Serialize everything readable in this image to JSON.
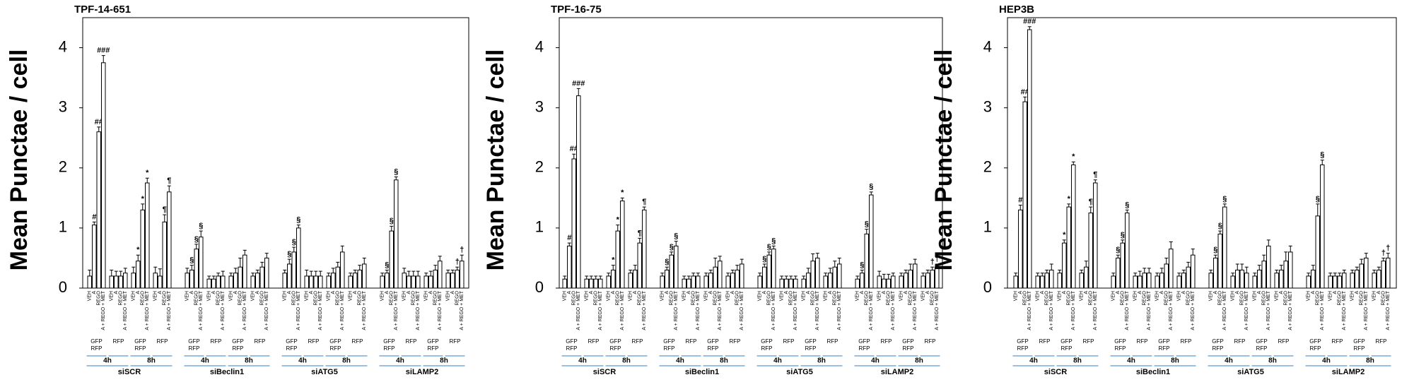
{
  "chart_data": [
    {
      "type": "bar",
      "title": "TPF-14-651",
      "ylabel": "Mean Punctae / cell",
      "ylim": [
        0,
        4.5
      ],
      "yticks": [
        0,
        1,
        2,
        3,
        4
      ],
      "bar_labels": [
        "VEH",
        "A",
        "REGO",
        "A + REGO + MET"
      ],
      "reporters": [
        [
          "GFP",
          "RFP"
        ],
        [
          "RFP"
        ]
      ],
      "times": [
        "4h",
        "8h"
      ],
      "groups": [
        "siSCR",
        "siBeclin1",
        "siATG5",
        "siLAMP2"
      ],
      "values": [
        0.2,
        1.05,
        2.6,
        3.75,
        0.2,
        0.2,
        0.2,
        0.25,
        0.25,
        0.45,
        1.3,
        1.75,
        0.25,
        0.2,
        1.1,
        1.6,
        0.25,
        0.3,
        0.65,
        0.85,
        0.15,
        0.15,
        0.2,
        0.2,
        0.2,
        0.25,
        0.35,
        0.55,
        0.2,
        0.25,
        0.35,
        0.5,
        0.25,
        0.4,
        0.6,
        1.0,
        0.2,
        0.2,
        0.2,
        0.2,
        0.2,
        0.25,
        0.35,
        0.6,
        0.2,
        0.25,
        0.3,
        0.4,
        0.2,
        0.25,
        0.95,
        1.8,
        0.25,
        0.2,
        0.2,
        0.2,
        0.2,
        0.2,
        0.3,
        0.45,
        0.25,
        0.25,
        0.3,
        0.45
      ],
      "errors": [
        0.1,
        0.05,
        0.08,
        0.12,
        0.1,
        0.08,
        0.08,
        0.08,
        0.1,
        0.1,
        0.1,
        0.08,
        0.1,
        0.12,
        0.12,
        0.1,
        0.08,
        0.08,
        0.08,
        0.1,
        0.05,
        0.05,
        0.05,
        0.08,
        0.05,
        0.08,
        0.15,
        0.08,
        0.05,
        0.05,
        0.08,
        0.08,
        0.05,
        0.08,
        0.08,
        0.05,
        0.1,
        0.08,
        0.08,
        0.08,
        0.05,
        0.08,
        0.08,
        0.1,
        0.05,
        0.05,
        0.08,
        0.1,
        0.05,
        0.05,
        0.08,
        0.05,
        0.08,
        0.08,
        0.08,
        0.08,
        0.05,
        0.08,
        0.08,
        0.08,
        0.05,
        0.05,
        0.05,
        0.1
      ],
      "symbols": [
        null,
        "#",
        "##",
        "###",
        null,
        null,
        null,
        null,
        null,
        "*",
        "*",
        "*",
        null,
        null,
        "¶",
        "¶",
        null,
        "§",
        "§",
        "§",
        null,
        null,
        null,
        null,
        null,
        null,
        null,
        null,
        null,
        null,
        null,
        null,
        null,
        "§",
        "§",
        "§",
        null,
        null,
        null,
        null,
        null,
        null,
        null,
        null,
        null,
        null,
        null,
        null,
        null,
        "§",
        "§",
        "§",
        null,
        null,
        null,
        null,
        null,
        null,
        null,
        null,
        null,
        null,
        "†",
        "†"
      ]
    },
    {
      "type": "bar",
      "title": "TPF-16-75",
      "ylabel": "Mean Punctae / cell",
      "ylim": [
        0,
        4.5
      ],
      "yticks": [
        0,
        1,
        2,
        3,
        4
      ],
      "bar_labels": [
        "VEH",
        "A",
        "REGO",
        "A + REGO + MET"
      ],
      "reporters": [
        [
          "GFP",
          "RFP"
        ],
        [
          "RFP"
        ]
      ],
      "times": [
        "4h",
        "8h"
      ],
      "groups": [
        "siSCR",
        "siBeclin1",
        "siATG5",
        "siLAMP2"
      ],
      "values": [
        0.15,
        0.7,
        2.15,
        3.2,
        0.15,
        0.15,
        0.15,
        0.15,
        0.2,
        0.3,
        0.95,
        1.45,
        0.25,
        0.3,
        0.75,
        1.3,
        0.2,
        0.3,
        0.55,
        0.7,
        0.15,
        0.15,
        0.2,
        0.2,
        0.2,
        0.25,
        0.35,
        0.45,
        0.2,
        0.25,
        0.3,
        0.4,
        0.2,
        0.35,
        0.55,
        0.65,
        0.15,
        0.15,
        0.15,
        0.15,
        0.15,
        0.25,
        0.45,
        0.5,
        0.2,
        0.25,
        0.35,
        0.4,
        0.15,
        0.25,
        0.9,
        1.55,
        0.2,
        0.15,
        0.15,
        0.2,
        0.2,
        0.25,
        0.3,
        0.4,
        0.2,
        0.25,
        0.3,
        0.35
      ],
      "errors": [
        0.05,
        0.05,
        0.08,
        0.12,
        0.05,
        0.05,
        0.05,
        0.05,
        0.05,
        0.08,
        0.1,
        0.05,
        0.05,
        0.08,
        0.08,
        0.05,
        0.05,
        0.05,
        0.05,
        0.08,
        0.05,
        0.05,
        0.05,
        0.05,
        0.05,
        0.05,
        0.15,
        0.08,
        0.05,
        0.05,
        0.08,
        0.08,
        0.05,
        0.05,
        0.05,
        0.05,
        0.05,
        0.05,
        0.05,
        0.05,
        0.05,
        0.08,
        0.12,
        0.08,
        0.05,
        0.08,
        0.1,
        0.1,
        0.05,
        0.05,
        0.08,
        0.05,
        0.08,
        0.08,
        0.08,
        0.05,
        0.05,
        0.05,
        0.1,
        0.08,
        0.05,
        0.05,
        0.05,
        0.05
      ],
      "symbols": [
        null,
        "#",
        "##",
        "###",
        null,
        null,
        null,
        null,
        null,
        "*",
        "*",
        "*",
        null,
        null,
        "¶",
        "¶",
        null,
        "§",
        "§",
        "§",
        null,
        null,
        null,
        null,
        null,
        null,
        null,
        null,
        null,
        null,
        null,
        null,
        null,
        "§",
        "§",
        "§",
        null,
        null,
        null,
        null,
        null,
        null,
        null,
        null,
        null,
        null,
        null,
        null,
        null,
        "§",
        "§",
        "§",
        null,
        null,
        null,
        null,
        null,
        null,
        null,
        null,
        null,
        null,
        "†",
        "†"
      ]
    },
    {
      "type": "bar",
      "title": "HEP3B",
      "ylabel": "Mean Punctae / cell",
      "ylim": [
        0,
        4.5
      ],
      "yticks": [
        0,
        1,
        2,
        3,
        4
      ],
      "bar_labels": [
        "VEH",
        "A",
        "REGO",
        "A + REGO + MET"
      ],
      "reporters": [
        [
          "GFP",
          "RFP"
        ],
        [
          "RFP"
        ]
      ],
      "times": [
        "4h",
        "8h"
      ],
      "groups": [
        "siSCR",
        "siBeclin1",
        "siATG5",
        "siLAMP2"
      ],
      "values": [
        0.2,
        1.3,
        3.1,
        4.3,
        0.2,
        0.2,
        0.25,
        0.3,
        0.25,
        0.75,
        1.35,
        2.05,
        0.25,
        0.35,
        1.25,
        1.75,
        0.2,
        0.5,
        0.75,
        1.25,
        0.2,
        0.2,
        0.25,
        0.25,
        0.2,
        0.25,
        0.4,
        0.65,
        0.2,
        0.25,
        0.35,
        0.55,
        0.25,
        0.5,
        0.9,
        1.35,
        0.2,
        0.3,
        0.3,
        0.25,
        0.2,
        0.3,
        0.45,
        0.7,
        0.25,
        0.3,
        0.45,
        0.6,
        0.2,
        0.3,
        1.2,
        2.05,
        0.2,
        0.2,
        0.2,
        0.25,
        0.25,
        0.3,
        0.4,
        0.5,
        0.25,
        0.3,
        0.45,
        0.5
      ],
      "errors": [
        0.05,
        0.08,
        0.08,
        0.05,
        0.05,
        0.05,
        0.05,
        0.1,
        0.05,
        0.05,
        0.05,
        0.05,
        0.05,
        0.1,
        0.1,
        0.05,
        0.05,
        0.05,
        0.05,
        0.05,
        0.05,
        0.08,
        0.08,
        0.08,
        0.05,
        0.08,
        0.1,
        0.12,
        0.05,
        0.05,
        0.08,
        0.1,
        0.05,
        0.05,
        0.05,
        0.05,
        0.05,
        0.1,
        0.1,
        0.1,
        0.05,
        0.08,
        0.1,
        0.1,
        0.05,
        0.08,
        0.15,
        0.1,
        0.05,
        0.08,
        0.2,
        0.08,
        0.05,
        0.05,
        0.05,
        0.05,
        0.05,
        0.05,
        0.08,
        0.08,
        0.05,
        0.05,
        0.05,
        0.08
      ],
      "symbols": [
        null,
        "#",
        "##",
        "###",
        null,
        null,
        null,
        null,
        null,
        "*",
        "*",
        "*",
        null,
        null,
        "¶",
        "¶",
        null,
        "§",
        "§",
        "§",
        null,
        null,
        null,
        null,
        null,
        null,
        null,
        null,
        null,
        null,
        null,
        null,
        null,
        "§",
        "§",
        "§",
        null,
        null,
        null,
        null,
        null,
        null,
        null,
        null,
        null,
        null,
        null,
        null,
        null,
        null,
        "§",
        "§",
        null,
        null,
        null,
        null,
        null,
        null,
        null,
        null,
        null,
        null,
        "†",
        "†"
      ]
    }
  ]
}
